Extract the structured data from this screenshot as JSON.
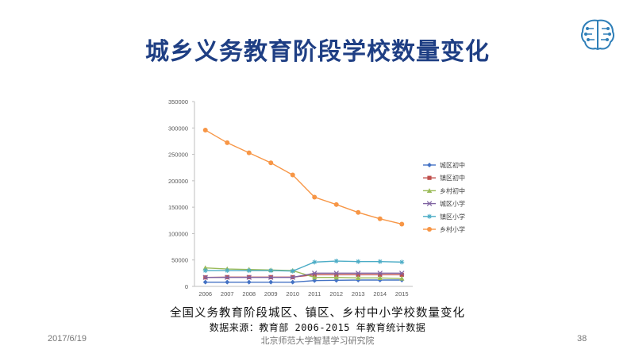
{
  "slide": {
    "title": "城乡义务教育阶段学校数量变化",
    "caption": "全国义务教育阶段城区、镇区、乡村中小学校数量变化",
    "source": "数据来源：教育部 2006-2015 年教育统计数据",
    "date": "2017/6/19",
    "institute": "北京师范大学智慧学习研究院",
    "page_number": "38"
  },
  "logo": {
    "icon": "brain-circuit-icon",
    "color": "#2f7fb8"
  },
  "chart_data": {
    "type": "line",
    "x": [
      "2006",
      "2007",
      "2008",
      "2009",
      "2010",
      "2011",
      "2012",
      "2013",
      "2014",
      "2015"
    ],
    "ylim": [
      0,
      350000
    ],
    "yticks": [
      "0",
      "50000",
      "100000",
      "150000",
      "200000",
      "250000",
      "300000",
      "350000"
    ],
    "grid": false,
    "legend_position": "right",
    "series": [
      {
        "name": "城区初中",
        "color": "#4472c4",
        "marker": "diamond",
        "values": [
          8000,
          8000,
          8000,
          8000,
          8000,
          11000,
          11500,
          12000,
          12000,
          12000
        ]
      },
      {
        "name": "镇区初中",
        "color": "#c0504d",
        "marker": "square",
        "values": [
          17000,
          17500,
          17500,
          17500,
          17500,
          22000,
          22000,
          22000,
          22000,
          22000
        ]
      },
      {
        "name": "乡村初中",
        "color": "#9bbb59",
        "marker": "triangle",
        "values": [
          35000,
          33000,
          32000,
          31000,
          30000,
          17000,
          17000,
          16000,
          16000,
          15000
        ]
      },
      {
        "name": "城区小学",
        "color": "#8064a2",
        "marker": "x",
        "values": [
          17000,
          17000,
          17000,
          17000,
          17000,
          25000,
          25000,
          25000,
          25000,
          25000
        ]
      },
      {
        "name": "镇区小学",
        "color": "#4bacc6",
        "marker": "star",
        "values": [
          30000,
          30000,
          30000,
          30000,
          29000,
          46000,
          48000,
          47000,
          47000,
          46000
        ]
      },
      {
        "name": "乡村小学",
        "color": "#f79646",
        "marker": "circle",
        "values": [
          296000,
          272000,
          253000,
          234000,
          211000,
          169000,
          155000,
          140000,
          128000,
          118000
        ]
      }
    ]
  }
}
